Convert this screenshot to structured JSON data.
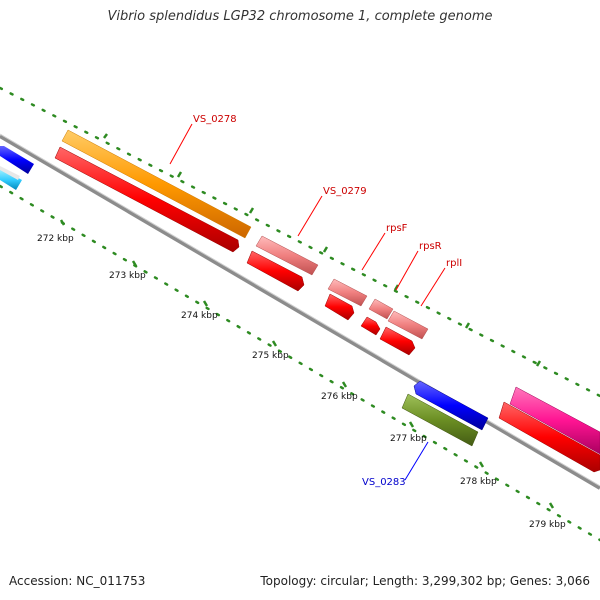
{
  "title": "Vibrio splendidus LGP32 chromosome 1, complete genome",
  "footer": {
    "accession": "Accession: NC_011753",
    "summary": "Topology: circular; Length: 3,299,302 bp; Genes: 3,066"
  },
  "ruler_ticks": [
    "272 kbp",
    "273 kbp",
    "274 kbp",
    "275 kbp",
    "276 kbp",
    "277 kbp",
    "278 kbp",
    "279 kbp"
  ],
  "gene_labels": [
    {
      "text": "VS_0278",
      "color": "#cc0000"
    },
    {
      "text": "VS_0279",
      "color": "#cc0000"
    },
    {
      "text": "rpsF",
      "color": "#cc0000"
    },
    {
      "text": "rpsR",
      "color": "#cc0000"
    },
    {
      "text": "rplI",
      "color": "#cc0000"
    },
    {
      "text": "VS_0283",
      "color": "#0000cc"
    }
  ],
  "colors": {
    "backbone": "#888888",
    "cds": "#ff0000",
    "orange_feature": "#ff9900",
    "pink_feature": "#f08080",
    "blue_feature": "#0000ff",
    "cyan_feature": "#33ccff",
    "olive_feature": "#6b8e23",
    "magenta_feature": "#ff1493",
    "tick_green": "#2e8b22"
  }
}
